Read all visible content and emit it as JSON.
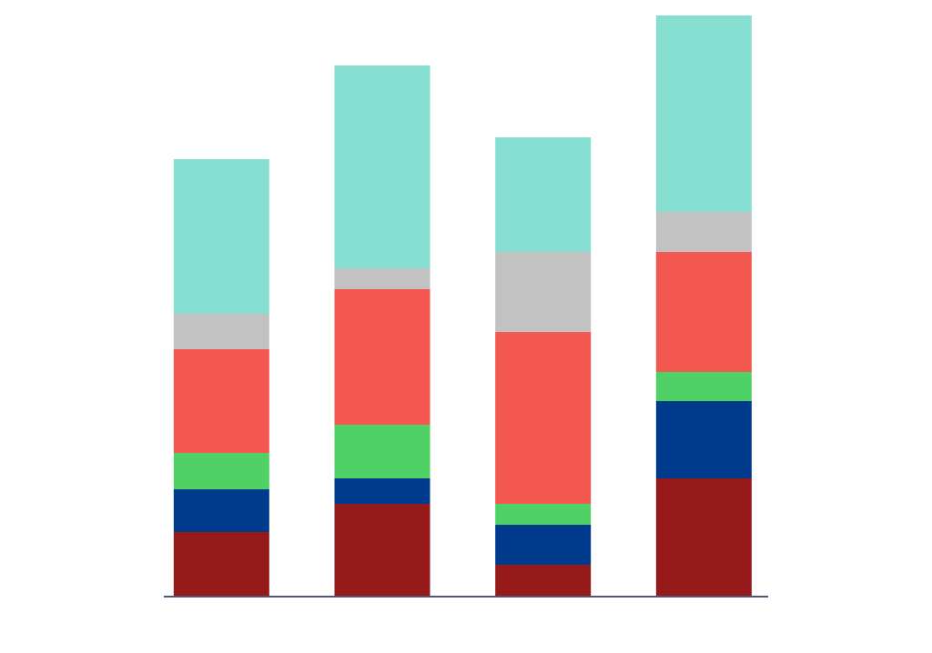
{
  "chart_data": {
    "type": "stacked_bar",
    "categories": [
      null,
      null,
      null,
      null
    ],
    "series": [
      {
        "color": "#961a1a",
        "values": [
          71,
          102,
          35,
          130
        ]
      },
      {
        "color": "#003a8c",
        "values": [
          47,
          28,
          44,
          85
        ]
      },
      {
        "color": "#4fd166",
        "values": [
          40,
          59,
          23,
          32
        ]
      },
      {
        "color": "#f2584f",
        "values": [
          114,
          149,
          189,
          132
        ]
      },
      {
        "color": "#c2c2c2",
        "values": [
          39,
          23,
          88,
          44
        ]
      },
      {
        "color": "#86dfd0",
        "values": [
          170,
          223,
          126,
          216
        ]
      }
    ],
    "ylim": [
      0,
      640
    ]
  }
}
